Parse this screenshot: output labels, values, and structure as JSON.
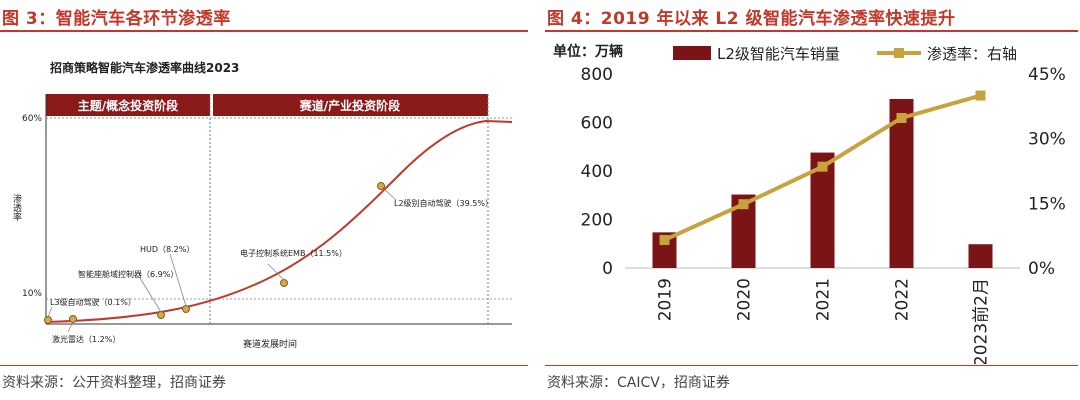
{
  "left": {
    "figure_title": "图 3：智能汽车各环节渗透率",
    "source": "资料来源：公开资料整理，招商证券",
    "chart_title": "招商策略智能汽车渗透率曲线2023",
    "phase_left": "主题/概念投资阶段",
    "phase_right": "赛道/产业投资阶段",
    "y_label": "渗透率",
    "x_label": "赛道发展时间",
    "y_60": "60%",
    "y_10": "10%",
    "points": [
      {
        "label": "L3级自动驾驶（0.1%）"
      },
      {
        "label": "激光雷达（1.2%）"
      },
      {
        "label": "智能座舱域控制器（6.9%）"
      },
      {
        "label": "HUD（8.2%）"
      },
      {
        "label": "电子控制系统EMB（11.5%）"
      },
      {
        "label": "L2级别自动驾驶（39.5%）"
      }
    ],
    "colors": {
      "curve": "#c0392b",
      "band": "#8b1a1a",
      "point": "#d4a94a"
    }
  },
  "right": {
    "figure_title": "图 4：2019 年以来 L2 级智能汽车渗透率快速提升",
    "source": "资料来源：CAICV，招商证券",
    "unit": "单位：万辆",
    "colors": {
      "bar": "#7b1416",
      "line": "#c8a23a"
    }
  },
  "chart_data": {
    "type": "bar",
    "categories": [
      "2019",
      "2020",
      "2021",
      "2022",
      "2023前2月"
    ],
    "series": [
      {
        "name": "L2级智能汽车销量",
        "type": "bar",
        "axis": "left",
        "values": [
          147,
          303,
          476,
          697,
          98
        ]
      },
      {
        "name": "渗透率：右轴",
        "type": "line",
        "axis": "right",
        "values": [
          6.5,
          14.8,
          23.5,
          34.8,
          40.0
        ],
        "unit": "%"
      }
    ],
    "y_left": {
      "ticks": [
        "0",
        "200",
        "400",
        "600",
        "800"
      ],
      "ylim": [
        0,
        800
      ]
    },
    "y_right": {
      "ticks": [
        "0%",
        "15%",
        "30%",
        "45%"
      ],
      "ylim": [
        0,
        45
      ]
    },
    "legend_position": "top"
  }
}
